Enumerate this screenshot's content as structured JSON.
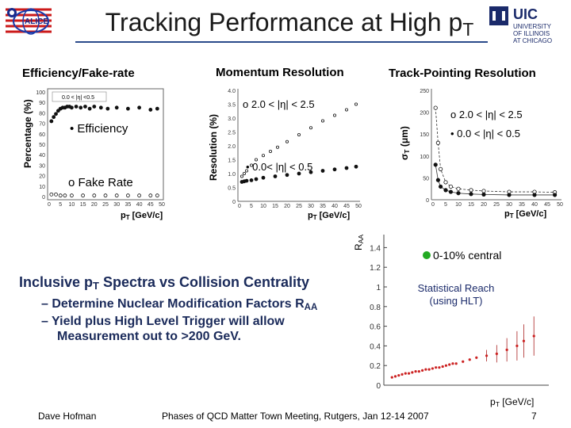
{
  "header": {
    "title_main": "Tracking Performance at High p",
    "title_sub": "T",
    "logo_left_text": "ALICE",
    "logo_right_lines": [
      "UIC",
      "UNIVERSITY",
      "OF ILLINOIS",
      "AT CHICAGO"
    ]
  },
  "sections": {
    "efficiency": "Efficiency/Fake-rate",
    "momentum": "Momentum Resolution",
    "pointing": "Track-Pointing Resolution"
  },
  "eff_plot": {
    "ylabel": "Percentage (%)",
    "yticks": [
      "100",
      "90",
      "80",
      "70",
      "60",
      "50",
      "40",
      "30",
      "20",
      "10",
      "0"
    ],
    "xticks": [
      "0",
      "5",
      "10",
      "15",
      "20",
      "25",
      "30",
      "35",
      "40",
      "45",
      "50"
    ],
    "inset_label": "0.0 < |η| <0.5",
    "legend_eff": "• Efficiency",
    "legend_fake": "o Fake Rate",
    "xlabel_main": "p",
    "xlabel_sub": "T",
    "xlabel_unit": " [GeV/c]"
  },
  "mom_plot": {
    "ylabel": "Resolution (%)",
    "yticks": [
      "4.0",
      "3.5",
      "3.0",
      "2.5",
      "2.0",
      "1.5",
      "1.0",
      "0.5",
      "0"
    ],
    "xticks": [
      "0",
      "5",
      "10",
      "15",
      "20",
      "25",
      "30",
      "35",
      "40",
      "45",
      "50"
    ],
    "legend_fwd": "o 2.0 < |η| < 2.5",
    "legend_cen": "• 0.0< |η| < 0.5",
    "xlabel_main": "p",
    "xlabel_sub": "T",
    "xlabel_unit": " [GeV/c]"
  },
  "pt_plot": {
    "ylabel": "σ",
    "ylabel_sub": "T",
    "ylabel_unit": " (μm)",
    "yticks": [
      "250",
      "200",
      "150",
      "100",
      "50",
      "0"
    ],
    "xticks": [
      "0",
      "5",
      "10",
      "15",
      "20",
      "25",
      "30",
      "35",
      "40",
      "45",
      "50"
    ],
    "legend_fwd": "o 2.0 < |η| < 2.5",
    "legend_cen": "• 0.0 < |η| < 0.5",
    "xlabel_main": "p",
    "xlabel_sub": "T",
    "xlabel_unit": " [GeV/c]"
  },
  "raa_plot": {
    "ylabel_main": "R",
    "ylabel_sub": "AA",
    "yticks": [
      "1.4",
      "1.2",
      "1",
      "0.8",
      "0.6",
      "0.4",
      "0.2",
      "0"
    ],
    "legend": "0-10% central",
    "note_line1": "Statistical Reach",
    "note_line2": "(using HLT)",
    "xlabel_main": "p",
    "xlabel_sub": "T",
    "xlabel_unit": " [GeV/c]"
  },
  "inclusive": {
    "heading_a": "Inclusive p",
    "heading_sub": "T",
    "heading_b": " Spectra vs  Collision Centrality",
    "bullet1_a": "– Determine Nuclear Modification Factors R",
    "bullet1_sub": "AA",
    "bullet2_line1": "– Yield plus High Level Trigger will allow",
    "bullet2_line2": "Measurement out to >200 GeV."
  },
  "footer": {
    "author": "Dave Hofman",
    "meeting": "Phases of QCD Matter Town Meeting, Rutgers, Jan 12-14 2007",
    "page": "7"
  },
  "colors": {
    "title_rule": "#2a4a8a",
    "bullet_text": "#1a2a5a",
    "raa_points": "#cc2222",
    "logo_blue": "#1a2a6a"
  },
  "chart_data": [
    {
      "type": "scatter",
      "title": "Efficiency/Fake-rate",
      "ylabel": "Percentage (%)",
      "xlabel": "pT [GeV/c]",
      "xlim": [
        0,
        50
      ],
      "ylim": [
        0,
        100
      ],
      "series": [
        {
          "name": "Efficiency",
          "x": [
            1,
            2,
            3,
            4,
            5,
            6,
            7,
            8,
            9,
            10,
            12,
            14,
            16,
            18,
            20,
            23,
            26,
            30,
            35,
            40,
            45,
            48
          ],
          "y": [
            72,
            76,
            79,
            82,
            84,
            85,
            85,
            86,
            86,
            85,
            86,
            85,
            86,
            84,
            86,
            85,
            84,
            85,
            84,
            85,
            83,
            84
          ]
        },
        {
          "name": "Fake Rate",
          "x": [
            1,
            3,
            5,
            7,
            10,
            15,
            20,
            25,
            30,
            35,
            40,
            45,
            48
          ],
          "y": [
            2,
            2,
            1,
            1,
            1,
            1,
            1,
            1,
            1,
            1,
            1,
            1,
            1
          ]
        }
      ]
    },
    {
      "type": "scatter",
      "title": "Momentum Resolution",
      "ylabel": "Resolution (%)",
      "xlabel": "pT [GeV/c]",
      "xlim": [
        0,
        50
      ],
      "ylim": [
        0,
        4
      ],
      "series": [
        {
          "name": "2.0 < |η| < 2.5",
          "x": [
            1,
            2,
            3,
            5,
            7,
            10,
            13,
            16,
            20,
            25,
            30,
            35,
            40,
            45,
            49
          ],
          "y": [
            0.9,
            1.0,
            1.1,
            1.3,
            1.5,
            1.65,
            1.8,
            1.95,
            2.15,
            2.4,
            2.65,
            2.9,
            3.1,
            3.3,
            3.5
          ]
        },
        {
          "name": "0.0< |η| < 0.5",
          "x": [
            1,
            2,
            3,
            5,
            7,
            10,
            15,
            20,
            25,
            30,
            35,
            40,
            45,
            49
          ],
          "y": [
            0.7,
            0.72,
            0.74,
            0.76,
            0.8,
            0.85,
            0.9,
            0.95,
            1.0,
            1.05,
            1.1,
            1.15,
            1.2,
            1.25
          ]
        }
      ]
    },
    {
      "type": "scatter",
      "title": "Track-Pointing Resolution",
      "ylabel": "σT (μm)",
      "xlabel": "pT [GeV/c]",
      "xlim": [
        0,
        50
      ],
      "ylim": [
        0,
        250
      ],
      "series": [
        {
          "name": "2.0 < |η| < 2.5",
          "x": [
            1,
            2,
            3,
            5,
            7,
            10,
            15,
            20,
            30,
            40,
            48
          ],
          "y": [
            210,
            130,
            70,
            40,
            30,
            25,
            22,
            20,
            18,
            18,
            17
          ]
        },
        {
          "name": "0.0 < |η| < 0.5",
          "x": [
            1,
            2,
            3,
            5,
            7,
            10,
            15,
            20,
            30,
            40,
            48
          ],
          "y": [
            80,
            45,
            30,
            22,
            18,
            15,
            13,
            12,
            11,
            11,
            11
          ]
        }
      ]
    },
    {
      "type": "scatter",
      "title": "",
      "ylabel": "RAA",
      "xlabel": "pT [GeV/c]",
      "xlim": [
        0,
        230
      ],
      "ylim": [
        0,
        1.5
      ],
      "series": [
        {
          "name": "0-10% central",
          "x": [
            5,
            10,
            15,
            20,
            25,
            30,
            35,
            40,
            45,
            50,
            55,
            60,
            65,
            70,
            75,
            80,
            85,
            90,
            95,
            100,
            110,
            120,
            130,
            145,
            160,
            175,
            190,
            200,
            215
          ],
          "y": [
            0.08,
            0.09,
            0.1,
            0.11,
            0.12,
            0.12,
            0.13,
            0.14,
            0.14,
            0.15,
            0.16,
            0.16,
            0.17,
            0.18,
            0.18,
            0.19,
            0.2,
            0.21,
            0.22,
            0.22,
            0.24,
            0.26,
            0.28,
            0.3,
            0.32,
            0.36,
            0.4,
            0.45,
            0.5
          ]
        }
      ]
    }
  ]
}
